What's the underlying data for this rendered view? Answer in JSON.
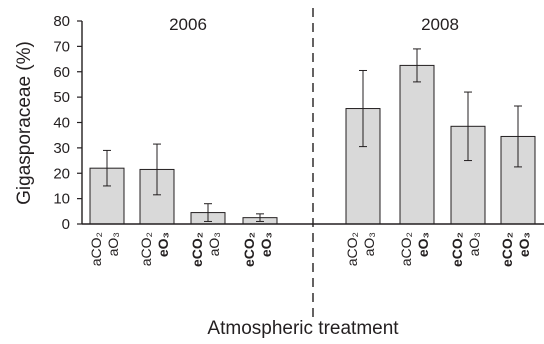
{
  "chart_data": {
    "type": "bar",
    "xlabel": "Atmospheric treatment",
    "ylabel": "Gigasporaceae (%)",
    "ylim": [
      0,
      80
    ],
    "yticks": [
      0,
      10,
      20,
      30,
      40,
      50,
      60,
      70,
      80
    ],
    "grid": false,
    "bar_color": "#d9d9d9",
    "panels": [
      {
        "label": "2006",
        "categories": [
          {
            "line1": "aCO₂",
            "line1_bold": false,
            "line2": "aO₃",
            "line2_bold": false
          },
          {
            "line1": "aCO₂",
            "line1_bold": false,
            "line2": "eO₃",
            "line2_bold": true
          },
          {
            "line1": "eCO₂",
            "line1_bold": true,
            "line2": "aO₃",
            "line2_bold": false
          },
          {
            "line1": "eCO₂",
            "line1_bold": true,
            "line2": "eO₃",
            "line2_bold": true
          }
        ],
        "values": [
          22,
          21.5,
          4.5,
          2.5
        ],
        "errors": [
          7,
          10,
          3.5,
          1.5
        ]
      },
      {
        "label": "2008",
        "categories": [
          {
            "line1": "aCO₂",
            "line1_bold": false,
            "line2": "aO₃",
            "line2_bold": false
          },
          {
            "line1": "aCO₂",
            "line1_bold": false,
            "line2": "eO₃",
            "line2_bold": true
          },
          {
            "line1": "eCO₂",
            "line1_bold": true,
            "line2": "aO₃",
            "line2_bold": false
          },
          {
            "line1": "eCO₂",
            "line1_bold": true,
            "line2": "eO₃",
            "line2_bold": true
          }
        ],
        "values": [
          45.5,
          62.5,
          38.5,
          34.5
        ],
        "errors": [
          15,
          6.5,
          13.5,
          12
        ]
      }
    ]
  }
}
